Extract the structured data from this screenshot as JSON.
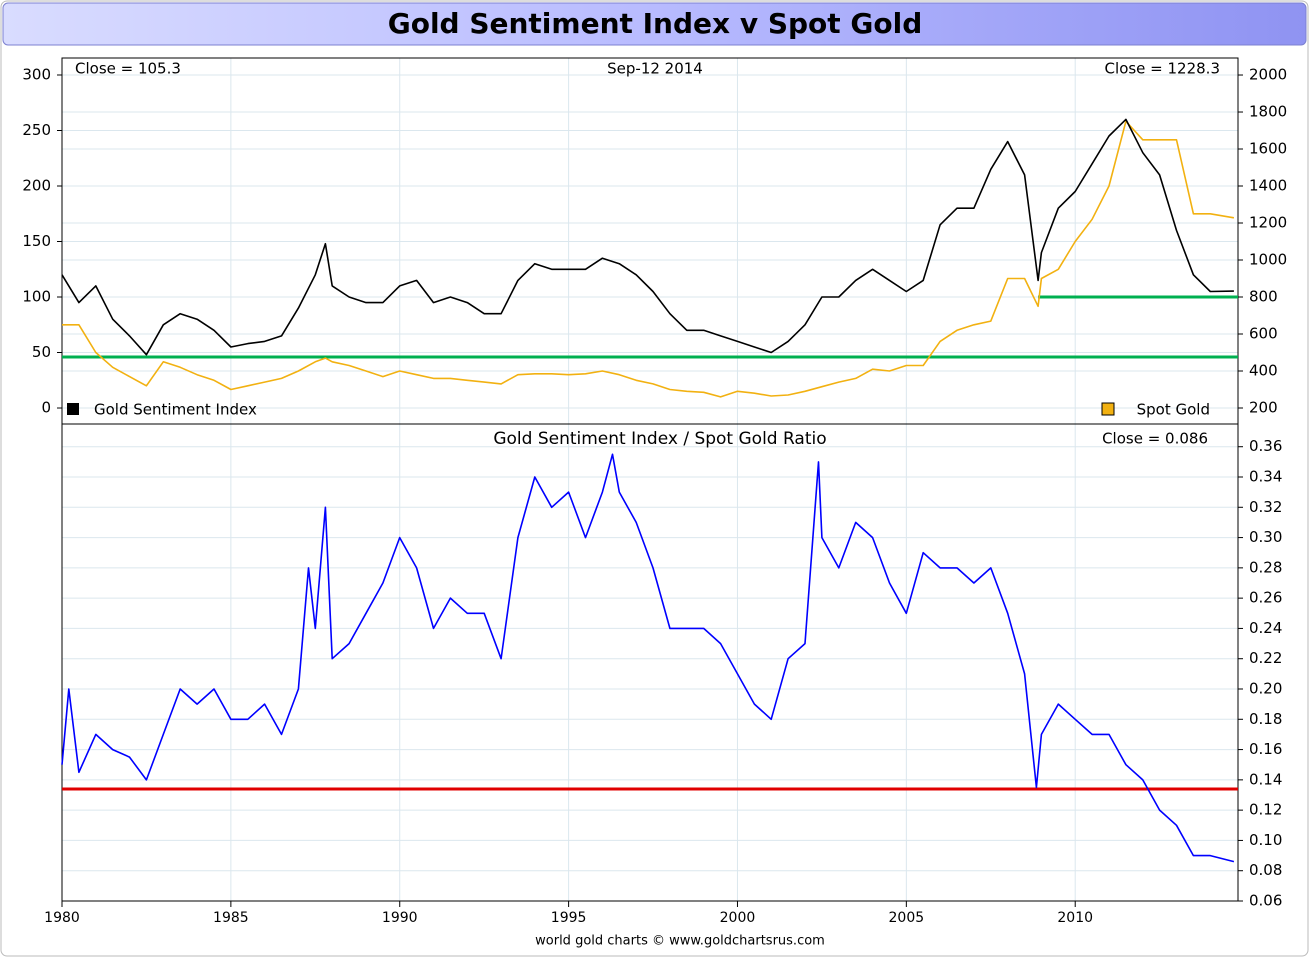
{
  "chart_data": [
    {
      "type": "line",
      "title": "Gold Sentiment Index v Spot Gold",
      "annotations": [
        "Close = 105.3",
        "Sep-12  2014",
        "Close = 1228.3"
      ],
      "xlim": [
        1980,
        2014.82
      ],
      "ylim": [
        -14.4,
        315.3
      ],
      "y2lim": [
        113.5,
        2092
      ],
      "yticks": [
        0,
        50,
        100,
        150,
        200,
        250,
        300
      ],
      "y2ticks": [
        200,
        400,
        600,
        800,
        1000,
        1200,
        1400,
        1600,
        1800,
        2000
      ],
      "grid": true,
      "x": [
        1980,
        1980.5,
        1981,
        1981.5,
        1982,
        1982.5,
        1983,
        1983.5,
        1984,
        1984.5,
        1985,
        1985.5,
        1986,
        1986.5,
        1987,
        1987.5,
        1987.8,
        1988,
        1988.5,
        1989,
        1989.5,
        1990,
        1990.5,
        1991,
        1991.5,
        1992,
        1992.5,
        1993,
        1993.5,
        1994,
        1994.5,
        1995,
        1995.5,
        1996,
        1996.5,
        1997,
        1997.5,
        1998,
        1998.5,
        1999,
        1999.5,
        2000,
        2000.5,
        2001,
        2001.5,
        2002,
        2002.5,
        2003,
        2003.5,
        2004,
        2004.5,
        2005,
        2005.5,
        2006,
        2006.5,
        2007,
        2007.5,
        2008,
        2008.5,
        2008.9,
        2009,
        2009.5,
        2010,
        2010.5,
        2011,
        2011.5,
        2012,
        2012.5,
        2013,
        2013.5,
        2014,
        2014.7
      ],
      "series": [
        {
          "name": "Gold Sentiment Index",
          "color": "#000000",
          "axis": "y",
          "values": [
            120,
            95,
            110,
            80,
            65,
            48,
            75,
            85,
            80,
            70,
            55,
            58,
            60,
            65,
            90,
            120,
            148,
            110,
            100,
            95,
            95,
            110,
            115,
            95,
            100,
            95,
            85,
            85,
            115,
            130,
            125,
            125,
            125,
            135,
            130,
            120,
            105,
            85,
            70,
            70,
            65,
            60,
            55,
            50,
            60,
            75,
            100,
            100,
            115,
            125,
            115,
            105,
            115,
            165,
            180,
            180,
            215,
            240,
            210,
            115,
            140,
            180,
            195,
            220,
            245,
            260,
            230,
            210,
            160,
            120,
            105,
            105.3
          ]
        },
        {
          "name": "Spot Gold",
          "color": "#f2b111",
          "axis": "y2",
          "values": [
            650,
            650,
            500,
            420,
            370,
            320,
            450,
            420,
            380,
            350,
            300,
            320,
            340,
            360,
            400,
            450,
            470,
            450,
            430,
            400,
            370,
            400,
            380,
            360,
            360,
            350,
            340,
            330,
            380,
            385,
            385,
            380,
            385,
            400,
            380,
            350,
            330,
            300,
            290,
            285,
            260,
            290,
            280,
            265,
            270,
            290,
            315,
            340,
            360,
            410,
            400,
            430,
            430,
            560,
            620,
            650,
            670,
            900,
            900,
            750,
            900,
            950,
            1100,
            1220,
            1400,
            1750,
            1650,
            1650,
            1650,
            1250,
            1250,
            1228.3
          ]
        }
      ],
      "hlines": [
        {
          "value": 46,
          "from": 1980,
          "color": "#00b050"
        },
        {
          "value": 100,
          "from": 2008.9,
          "color": "#00b050"
        }
      ]
    },
    {
      "type": "line",
      "title": "Gold Sentiment Index  /  Spot Gold Ratio",
      "annotations": [
        "Close = 0.086"
      ],
      "footer": "world gold charts © www.goldchartsrus.com",
      "xlim": [
        1980,
        2014.82
      ],
      "ylim": [
        0.06,
        0.375
      ],
      "y_axis_side": "right",
      "grid": true,
      "xticks": [
        1980,
        1985,
        1990,
        1995,
        2000,
        2005,
        2010
      ],
      "yticks": [
        0.06,
        0.08,
        {
          "value": 0.1,
          "label": "0.10"
        },
        0.12,
        0.14,
        0.16,
        0.18,
        {
          "value": 0.2,
          "label": "0.20"
        },
        0.22,
        0.24,
        0.26,
        0.28,
        {
          "value": 0.3,
          "label": "0.30"
        },
        0.32,
        0.34,
        0.36
      ],
      "series": [
        {
          "color": "#0000ff",
          "x": [
            1980,
            1980.2,
            1980.5,
            1981,
            1981.5,
            1982,
            1982.5,
            1983,
            1983.5,
            1984,
            1984.5,
            1985,
            1985.5,
            1986,
            1986.5,
            1987,
            1987.3,
            1987.5,
            1987.8,
            1988,
            1988.5,
            1989,
            1989.5,
            1990,
            1990.5,
            1991,
            1991.5,
            1992,
            1992.5,
            1993,
            1993.5,
            1994,
            1994.5,
            1995,
            1995.5,
            1996,
            1996.3,
            1996.5,
            1997,
            1997.5,
            1998,
            1998.5,
            1999,
            1999.5,
            2000,
            2000.5,
            2001,
            2001.5,
            2002,
            2002.4,
            2002.5,
            2003,
            2003.5,
            2004,
            2004.5,
            2005,
            2005.5,
            2006,
            2006.5,
            2007,
            2007.5,
            2008,
            2008.5,
            2008.85,
            2009,
            2009.5,
            2010,
            2010.5,
            2011,
            2011.5,
            2012,
            2012.5,
            2013,
            2013.5,
            2014,
            2014.7
          ],
          "values": [
            0.15,
            0.2,
            0.145,
            0.17,
            0.16,
            0.155,
            0.14,
            0.17,
            0.2,
            0.19,
            0.2,
            0.18,
            0.18,
            0.19,
            0.17,
            0.2,
            0.28,
            0.24,
            0.32,
            0.22,
            0.23,
            0.25,
            0.27,
            0.3,
            0.28,
            0.24,
            0.26,
            0.25,
            0.25,
            0.22,
            0.3,
            0.34,
            0.32,
            0.33,
            0.3,
            0.33,
            0.355,
            0.33,
            0.31,
            0.28,
            0.24,
            0.24,
            0.24,
            0.23,
            0.21,
            0.19,
            0.18,
            0.22,
            0.23,
            0.35,
            0.3,
            0.28,
            0.31,
            0.3,
            0.27,
            0.25,
            0.29,
            0.28,
            0.28,
            0.27,
            0.28,
            0.25,
            0.21,
            0.135,
            0.17,
            0.19,
            0.18,
            0.17,
            0.17,
            0.15,
            0.14,
            0.12,
            0.11,
            0.09,
            0.09,
            0.086
          ]
        }
      ],
      "hlines": [
        {
          "value": 0.134,
          "from": 1980,
          "color": "#e00000"
        }
      ]
    }
  ]
}
